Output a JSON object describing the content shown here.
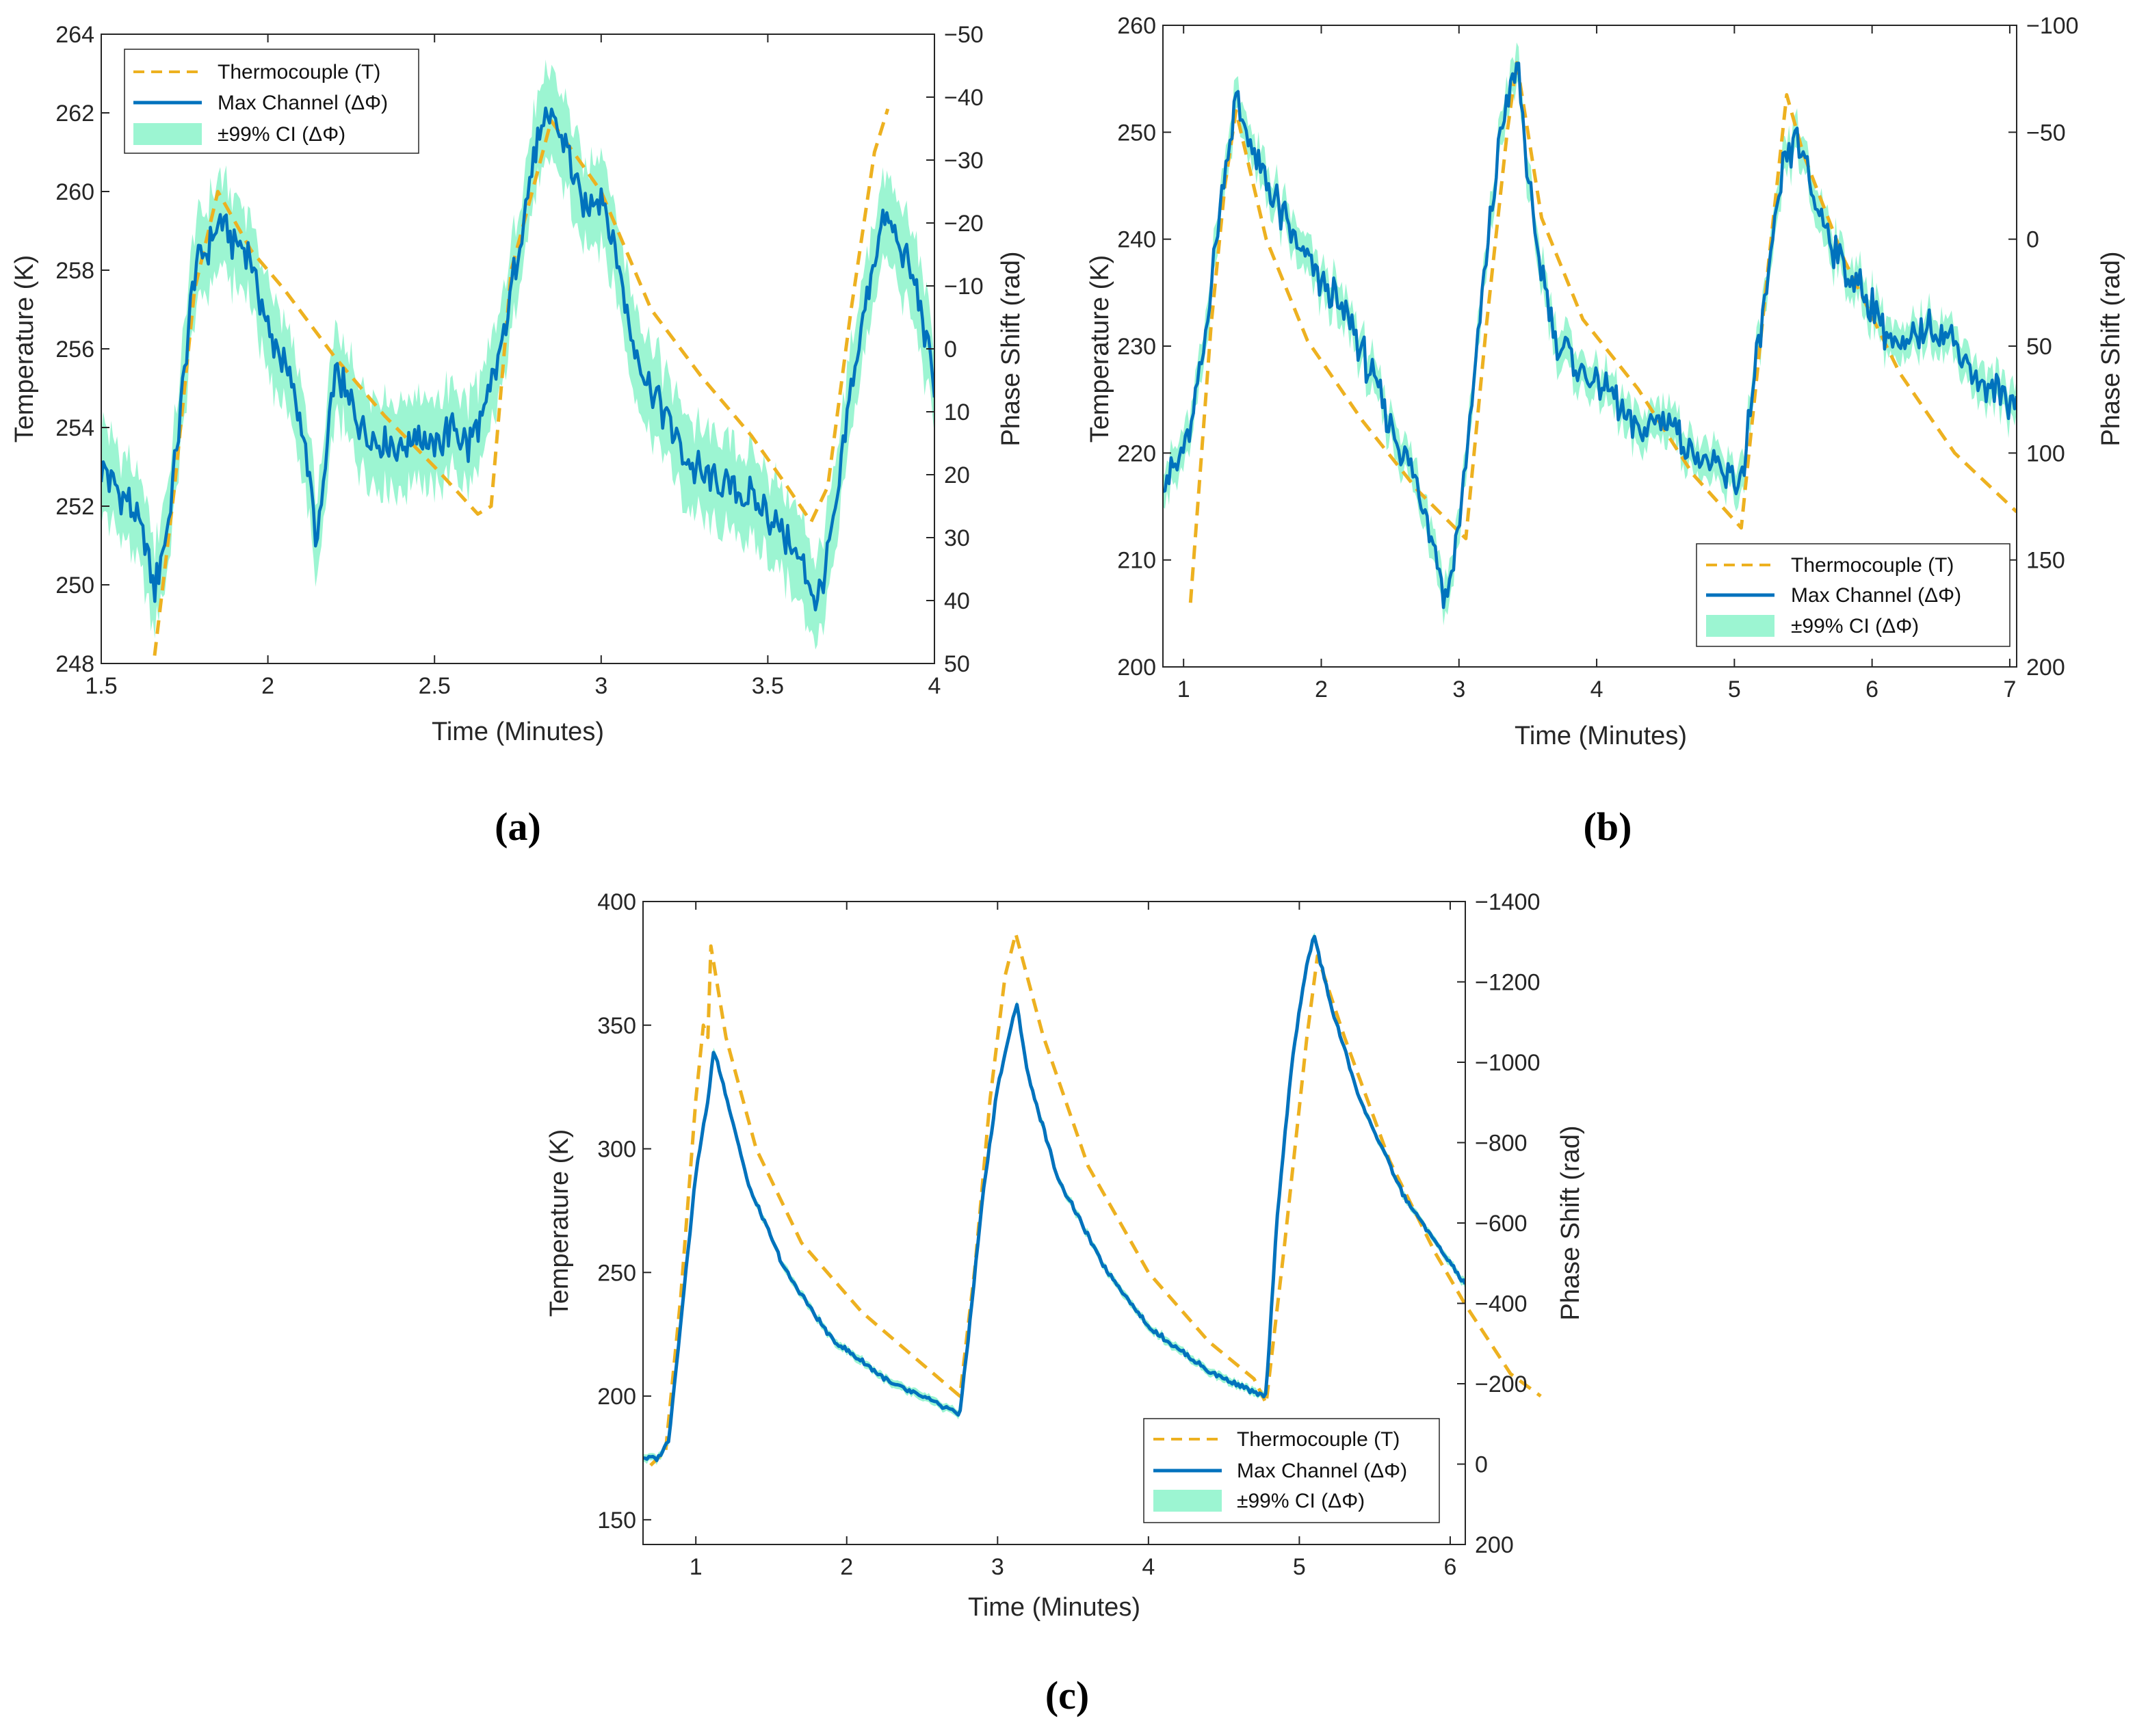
{
  "figure": {
    "series_names": {
      "thermocouple": "Thermocouple (T)",
      "max_channel": "Max Channel (ΔΦ)",
      "ci": "±99% CI (ΔΦ)"
    },
    "colors": {
      "thermocouple": "#EDB120",
      "max_channel": "#0072BD",
      "ci": "#9CF5D2",
      "axis": "#262626"
    }
  },
  "chart_data": [
    {
      "id": "a",
      "panel_label": "(a)",
      "type": "line",
      "xlabel": "Time (Minutes)",
      "ylabel": "Temperature (K)",
      "y2label": "Phase Shift (rad)",
      "xlim": [
        1.5,
        4
      ],
      "ylim": [
        248,
        264
      ],
      "y2lim": [
        50,
        -50
      ],
      "y2_reversed": true,
      "xticks": [
        1.5,
        2,
        2.5,
        3,
        3.5,
        4
      ],
      "yticks": [
        248,
        250,
        252,
        254,
        256,
        258,
        260,
        262,
        264
      ],
      "y2ticks": [
        50,
        40,
        30,
        20,
        10,
        0,
        -10,
        -20,
        -30,
        -40,
        -50
      ],
      "xticklabels": [
        "1.5",
        "2",
        "2.5",
        "3",
        "3.5",
        "4"
      ],
      "yticklabels": [
        "248",
        "250",
        "252",
        "254",
        "256",
        "258",
        "260",
        "262",
        "264"
      ],
      "y2ticklabels": [
        "50",
        "40",
        "30",
        "20",
        "10",
        "0",
        "−10",
        "−20",
        "−30",
        "−40",
        "−50"
      ],
      "legend_position": "top-left",
      "thermocouple": {
        "x": [
          1.66,
          1.72,
          1.78,
          1.85,
          1.95,
          2.05,
          2.2,
          2.35,
          2.5,
          2.63,
          2.67,
          2.73,
          2.85,
          3.0,
          3.15,
          3.3,
          3.45,
          3.55,
          3.63,
          3.68,
          3.75,
          3.82,
          3.86
        ],
        "y": [
          248.2,
          252.5,
          257.5,
          260.0,
          258.5,
          257.5,
          255.8,
          254.3,
          253.0,
          251.8,
          252.0,
          258.0,
          261.8,
          260.0,
          257.0,
          255.3,
          253.8,
          252.6,
          251.6,
          252.5,
          257.0,
          261.0,
          262.1
        ]
      },
      "max_channel": {
        "x": [
          1.5,
          1.54,
          1.58,
          1.62,
          1.66,
          1.7,
          1.74,
          1.78,
          1.82,
          1.86,
          1.9,
          1.95,
          2.0,
          2.05,
          2.1,
          2.15,
          2.2,
          2.25,
          2.3,
          2.35,
          2.4,
          2.45,
          2.5,
          2.55,
          2.6,
          2.65,
          2.7,
          2.75,
          2.8,
          2.85,
          2.9,
          2.95,
          3.0,
          3.05,
          3.1,
          3.15,
          3.2,
          3.25,
          3.3,
          3.35,
          3.4,
          3.45,
          3.5,
          3.55,
          3.6,
          3.65,
          3.7,
          3.75,
          3.8,
          3.85,
          3.9,
          3.95,
          4.0
        ],
        "y": [
          253.0,
          252.5,
          252.2,
          251.3,
          250.0,
          251.4,
          254.5,
          258.0,
          258.6,
          259.3,
          258.7,
          258.3,
          256.5,
          255.6,
          254.2,
          251.0,
          255.4,
          254.6,
          253.8,
          253.7,
          253.5,
          253.9,
          253.4,
          254.0,
          253.5,
          254.3,
          256.0,
          258.4,
          261.0,
          262.0,
          261.0,
          259.5,
          260.0,
          258.2,
          256.0,
          255.0,
          254.2,
          253.3,
          252.8,
          252.6,
          252.5,
          252.2,
          251.8,
          251.3,
          250.5,
          249.6,
          251.5,
          255.0,
          257.5,
          259.3,
          258.5,
          257.5,
          255.0
        ]
      },
      "ci_halfwidth_rad": 8
    },
    {
      "id": "b",
      "panel_label": "(b)",
      "type": "line",
      "xlabel": "Time (Minutes)",
      "ylabel": "Temperature (K)",
      "y2label": "Phase Shift (rad)",
      "xlim": [
        0.85,
        7.05
      ],
      "ylim": [
        200,
        260
      ],
      "y2lim": [
        200,
        -100
      ],
      "y2_reversed": true,
      "xticks": [
        1,
        2,
        3,
        4,
        5,
        6,
        7
      ],
      "yticks": [
        200,
        210,
        220,
        230,
        240,
        250,
        260
      ],
      "y2ticks": [
        200,
        150,
        100,
        50,
        0,
        -50,
        -100
      ],
      "xticklabels": [
        "1",
        "2",
        "3",
        "4",
        "5",
        "6",
        "7"
      ],
      "yticklabels": [
        "200",
        "210",
        "220",
        "230",
        "240",
        "250",
        "260"
      ],
      "y2ticklabels": [
        "200",
        "150",
        "100",
        "50",
        "0",
        "−50",
        "−100"
      ],
      "legend_position": "bottom-right",
      "thermocouple": {
        "x": [
          1.05,
          1.2,
          1.3,
          1.38,
          1.6,
          1.9,
          2.3,
          2.7,
          3.05,
          3.2,
          3.35,
          3.42,
          3.6,
          3.9,
          4.3,
          4.7,
          5.05,
          5.25,
          5.38,
          5.5,
          5.8,
          6.2,
          6.6,
          7.05
        ],
        "y": [
          206.0,
          232.0,
          245.0,
          252.0,
          240.0,
          230.5,
          223.0,
          216.5,
          212.0,
          232.0,
          250.0,
          256.5,
          242.0,
          232.5,
          226.0,
          218.0,
          213.0,
          238.0,
          253.5,
          248.0,
          238.0,
          227.5,
          220.0,
          214.5
        ]
      },
      "max_channel": {
        "x": [
          0.85,
          0.95,
          1.05,
          1.15,
          1.25,
          1.38,
          1.5,
          1.65,
          1.8,
          2.0,
          2.2,
          2.4,
          2.6,
          2.8,
          2.9,
          3.0,
          3.15,
          3.3,
          3.42,
          3.55,
          3.7,
          3.9,
          4.1,
          4.3,
          4.5,
          4.7,
          4.9,
          5.05,
          5.2,
          5.35,
          5.45,
          5.6,
          5.8,
          6.0,
          6.2,
          6.4,
          6.6,
          6.8,
          7.05
        ],
        "y": [
          218.0,
          218.5,
          222.0,
          230.0,
          242.0,
          253.0,
          248.0,
          244.0,
          240.0,
          236.0,
          232.5,
          226.0,
          220.0,
          213.0,
          206.0,
          213.0,
          232.0,
          250.0,
          256.5,
          240.0,
          231.0,
          227.5,
          225.5,
          222.0,
          223.5,
          220.0,
          218.0,
          217.5,
          232.0,
          246.0,
          250.0,
          243.0,
          237.0,
          234.0,
          229.0,
          232.0,
          230.5,
          226.0,
          225.0
        ]
      },
      "ci_halfwidth_rad": 10
    },
    {
      "id": "c",
      "panel_label": "(c)",
      "type": "line",
      "xlabel": "Time (Minutes)",
      "ylabel": "Temperature (K)",
      "y2label": "Phase Shift (rad)",
      "xlim": [
        0.65,
        6.1
      ],
      "ylim": [
        140,
        400
      ],
      "y2lim": [
        200,
        -1400
      ],
      "y2_reversed": true,
      "xticks": [
        1,
        2,
        3,
        4,
        5,
        6
      ],
      "yticks": [
        150,
        200,
        250,
        300,
        350,
        400
      ],
      "y2ticks": [
        200,
        0,
        -200,
        -400,
        -600,
        -800,
        -1000,
        -1200,
        -1400
      ],
      "xticklabels": [
        "1",
        "2",
        "3",
        "4",
        "5",
        "6"
      ],
      "yticklabels": [
        "150",
        "200",
        "250",
        "300",
        "350",
        "400"
      ],
      "y2ticklabels": [
        "200",
        "0",
        "−200",
        "−400",
        "−600",
        "−800",
        "−1000",
        "−1200",
        "−1400"
      ],
      "legend_position": "bottom-right",
      "thermocouple": {
        "x": [
          0.7,
          0.8,
          0.9,
          1.0,
          1.05,
          1.08,
          1.1,
          1.2,
          1.4,
          1.7,
          2.1,
          2.5,
          2.75,
          2.85,
          2.95,
          3.05,
          3.12,
          3.3,
          3.6,
          4.0,
          4.4,
          4.7,
          4.78,
          4.9,
          5.05,
          5.12,
          5.3,
          5.6,
          5.9,
          6.1,
          6.4,
          6.6
        ],
        "y": [
          172.0,
          178.0,
          240.0,
          320.0,
          350.0,
          345.0,
          382.0,
          345.0,
          300.0,
          262.0,
          234.0,
          213.0,
          200.0,
          252.0,
          320.0,
          370.0,
          387.0,
          346.0,
          293.0,
          250.0,
          222.0,
          207.0,
          197.0,
          260.0,
          345.0,
          378.0,
          345.0,
          295.0,
          258.0,
          237.0,
          209.0,
          200.0
        ]
      },
      "max_channel": {
        "x": [
          0.65,
          0.75,
          0.82,
          0.9,
          1.0,
          1.08,
          1.12,
          1.2,
          1.35,
          1.6,
          1.9,
          2.3,
          2.75,
          2.8,
          2.9,
          3.0,
          3.1,
          3.13,
          3.2,
          3.4,
          3.7,
          4.0,
          4.4,
          4.75,
          4.78,
          4.85,
          4.95,
          5.05,
          5.1,
          5.2,
          5.4,
          5.7,
          6.1
        ],
        "y": [
          175.0,
          175.0,
          182.0,
          230.0,
          290.0,
          320.0,
          340.0,
          322.0,
          285.0,
          250.0,
          223.0,
          205.0,
          193.0,
          220.0,
          280.0,
          325.0,
          352.0,
          358.0,
          330.0,
          288.0,
          253.0,
          228.0,
          210.0,
          200.0,
          200.0,
          270.0,
          335.0,
          375.0,
          386.0,
          360.0,
          320.0,
          280.0,
          245.0
        ]
      },
      "ci_halfwidth_rad": 12
    }
  ]
}
